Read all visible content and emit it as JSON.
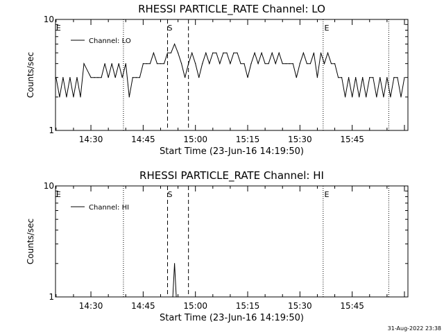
{
  "footer_timestamp": "31-Aug-2022 23:38",
  "chart_data": [
    {
      "type": "line",
      "title": "RHESSI PARTICLE_RATE Channel: LO",
      "xlabel": "Start Time (23-Jun-16 14:19:50)",
      "ylabel": "Counts/sec",
      "y_scale": "log",
      "ylim": [
        1,
        10
      ],
      "yticks": [
        {
          "value": 1,
          "label": "1"
        },
        {
          "value": 10,
          "label": "10"
        }
      ],
      "xlim": [
        "14:19:50",
        "16:01:00"
      ],
      "xticks": [
        "14:30",
        "14:45",
        "15:00",
        "15:15",
        "15:30",
        "15:45"
      ],
      "legend": {
        "position": "top-left"
      },
      "series": [
        {
          "name": "Channel: LO",
          "x": [
            "14:20:00",
            "14:21:00",
            "14:22:00",
            "14:23:00",
            "14:24:00",
            "14:25:00",
            "14:26:00",
            "14:27:00",
            "14:28:00",
            "14:30:00",
            "14:31:00",
            "14:32:00",
            "14:33:00",
            "14:34:00",
            "14:35:00",
            "14:36:00",
            "14:37:00",
            "14:38:00",
            "14:39:00",
            "14:40:00",
            "14:41:00",
            "14:42:00",
            "14:43:00",
            "14:44:00",
            "14:45:00",
            "14:46:00",
            "14:47:00",
            "14:48:00",
            "14:49:00",
            "14:50:00",
            "14:51:00",
            "14:52:00",
            "14:53:00",
            "14:54:00",
            "14:55:00",
            "14:56:00",
            "14:57:00",
            "14:58:00",
            "14:59:00",
            "15:00:00",
            "15:01:00",
            "15:02:00",
            "15:03:00",
            "15:04:00",
            "15:05:00",
            "15:06:00",
            "15:07:00",
            "15:08:00",
            "15:09:00",
            "15:10:00",
            "15:11:00",
            "15:12:00",
            "15:13:00",
            "15:14:00",
            "15:15:00",
            "15:16:00",
            "15:17:00",
            "15:18:00",
            "15:19:00",
            "15:20:00",
            "15:21:00",
            "15:22:00",
            "15:23:00",
            "15:24:00",
            "15:25:00",
            "15:26:00",
            "15:27:00",
            "15:28:00",
            "15:29:00",
            "15:30:00",
            "15:31:00",
            "15:32:00",
            "15:33:00",
            "15:34:00",
            "15:35:00",
            "15:36:00",
            "15:37:00",
            "15:38:00",
            "15:39:00",
            "15:40:00",
            "15:41:00",
            "15:42:00",
            "15:43:00",
            "15:44:00",
            "15:45:00",
            "15:46:00",
            "15:47:00",
            "15:48:00",
            "15:49:00",
            "15:50:00",
            "15:51:00",
            "15:52:00",
            "15:53:00",
            "15:54:00",
            "15:55:00",
            "15:56:00",
            "15:57:00",
            "15:58:00",
            "15:59:00",
            "16:00:00"
          ],
          "values": [
            3,
            2,
            3,
            2,
            3,
            2,
            3,
            2,
            4,
            3,
            3,
            3,
            3,
            4,
            3,
            4,
            3,
            4,
            3,
            4,
            2,
            3,
            3,
            3,
            4,
            4,
            4,
            5,
            4,
            4,
            4,
            5,
            5,
            6,
            5,
            4,
            3,
            4,
            5,
            4,
            3,
            4,
            5,
            4,
            5,
            5,
            4,
            5,
            5,
            4,
            5,
            5,
            4,
            4,
            3,
            4,
            5,
            4,
            5,
            4,
            4,
            5,
            4,
            5,
            4,
            4,
            4,
            4,
            3,
            4,
            5,
            4,
            4,
            5,
            3,
            5,
            4,
            5,
            4,
            4,
            3,
            3,
            2,
            3,
            2,
            3,
            2,
            3,
            2,
            3,
            3,
            2,
            3,
            2,
            3,
            2,
            3,
            3,
            2,
            3
          ]
        }
      ],
      "markers": [
        {
          "kind": "dotted",
          "time": "14:39:20",
          "label": ""
        },
        {
          "kind": "dashed",
          "time": "14:52:00",
          "label": ""
        },
        {
          "kind": "dashed",
          "time": "14:58:00",
          "label": ""
        },
        {
          "kind": "dotted",
          "time": "15:36:40",
          "label": ""
        },
        {
          "kind": "dotted",
          "time": "15:55:30",
          "label": ""
        }
      ],
      "annotations": [
        {
          "time": "14:20:00",
          "label": "E"
        },
        {
          "time": "14:52:00",
          "label": "S"
        },
        {
          "time": "15:37:00",
          "label": "E"
        }
      ]
    },
    {
      "type": "line",
      "title": "RHESSI PARTICLE_RATE Channel: HI",
      "xlabel": "Start Time (23-Jun-16 14:19:50)",
      "ylabel": "Counts/sec",
      "y_scale": "log",
      "ylim": [
        1,
        10
      ],
      "yticks": [
        {
          "value": 1,
          "label": "1"
        },
        {
          "value": 10,
          "label": "10"
        }
      ],
      "xlim": [
        "14:19:50",
        "16:01:00"
      ],
      "xticks": [
        "14:30",
        "14:45",
        "15:00",
        "15:15",
        "15:30",
        "15:45"
      ],
      "legend": {
        "position": "top-left"
      },
      "series": [
        {
          "name": "Channel: HI",
          "x": [
            "14:53:30",
            "14:54:00",
            "14:54:30",
            "14:55:00"
          ],
          "values": [
            1,
            2,
            1,
            1
          ]
        }
      ],
      "markers": [
        {
          "kind": "dotted",
          "time": "14:39:20",
          "label": ""
        },
        {
          "kind": "dashed",
          "time": "14:52:00",
          "label": ""
        },
        {
          "kind": "dashed",
          "time": "14:58:00",
          "label": ""
        },
        {
          "kind": "dotted",
          "time": "15:36:40",
          "label": ""
        },
        {
          "kind": "dotted",
          "time": "15:55:30",
          "label": ""
        }
      ],
      "annotations": [
        {
          "time": "14:20:00",
          "label": "E"
        },
        {
          "time": "14:52:00",
          "label": "S"
        },
        {
          "time": "15:37:00",
          "label": "E"
        }
      ]
    }
  ]
}
